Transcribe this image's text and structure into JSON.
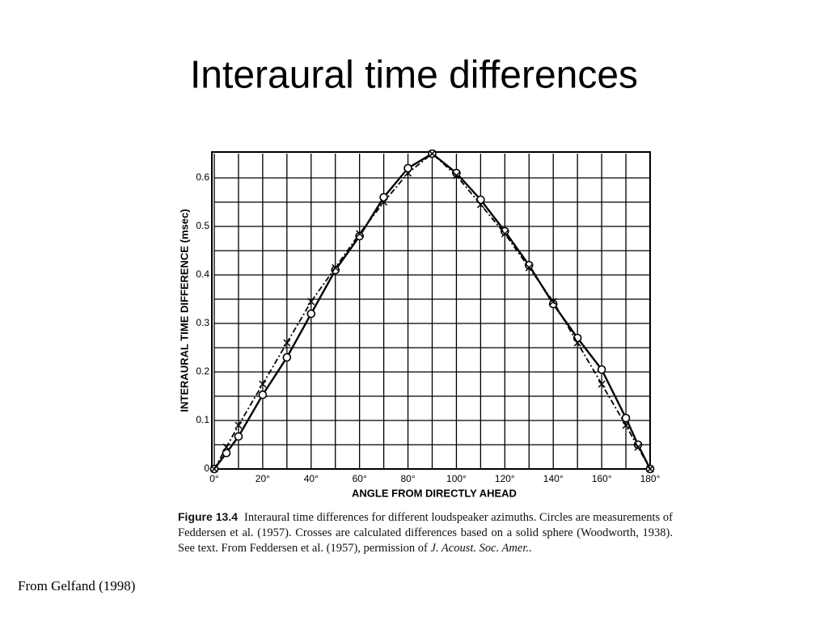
{
  "title": "Interaural time differences",
  "chart_data": {
    "type": "line",
    "xlabel": "ANGLE FROM DIRECTLY AHEAD",
    "ylabel": "INTERAURAL TIME DIFFERENCE (msec)",
    "x": [
      0,
      5,
      10,
      20,
      30,
      40,
      50,
      60,
      70,
      80,
      90,
      100,
      110,
      120,
      130,
      140,
      150,
      160,
      170,
      175,
      180
    ],
    "series": [
      {
        "color": "#000000",
        "marker": "circle",
        "dash": false,
        "values": [
          0,
          0.033,
          0.067,
          0.153,
          0.23,
          0.32,
          0.41,
          0.48,
          0.56,
          0.62,
          0.65,
          0.61,
          0.555,
          0.49,
          0.42,
          0.34,
          0.27,
          0.205,
          0.105,
          0.05,
          0
        ]
      },
      {
        "color": "#000000",
        "marker": "cross",
        "dash": true,
        "values": [
          0,
          0.045,
          0.09,
          0.175,
          0.26,
          0.345,
          0.415,
          0.485,
          0.55,
          0.61,
          0.65,
          0.605,
          0.545,
          0.485,
          0.415,
          0.345,
          0.26,
          0.175,
          0.09,
          0.045,
          0
        ]
      }
    ],
    "xlim": [
      0,
      180
    ],
    "xticks": [
      {
        "value": 0,
        "label": "0°"
      },
      {
        "value": 20,
        "label": "20°"
      },
      {
        "value": 40,
        "label": "40°"
      },
      {
        "value": 60,
        "label": "60°"
      },
      {
        "value": 80,
        "label": "80°"
      },
      {
        "value": 100,
        "label": "100°"
      },
      {
        "value": 120,
        "label": "120°"
      },
      {
        "value": 140,
        "label": "140°"
      },
      {
        "value": 160,
        "label": "160°"
      },
      {
        "value": 180,
        "label": "180°"
      }
    ],
    "ylim": [
      0,
      0.65
    ],
    "yticks": [
      0,
      0.1,
      0.2,
      0.3,
      0.4,
      0.5,
      0.6
    ],
    "grid": true
  },
  "caption": {
    "label": "Figure 13.4",
    "text": "Interaural time differences for different loudspeaker azimuths. Circles are measurements of Feddersen et al. (1957). Crosses are calculated differences based on a solid sphere (Woodworth, 1938). See text. From Feddersen et al. (1957), permission of",
    "journal": "J. Acoust. Soc. Amer.",
    "end": "."
  },
  "source": "From Gelfand (1998)"
}
